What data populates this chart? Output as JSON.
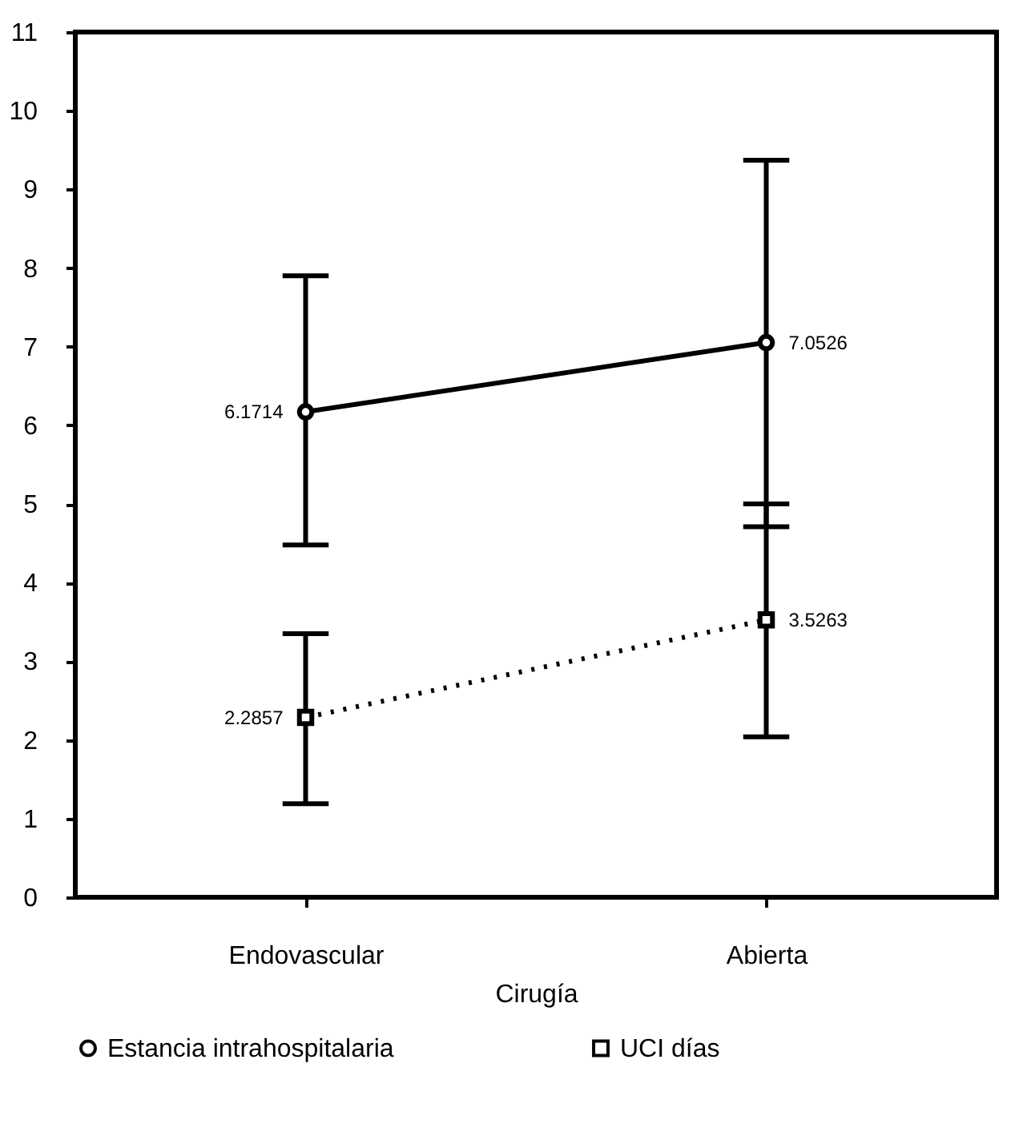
{
  "chart_data": {
    "type": "line",
    "xlabel": "Cirugía",
    "categories": [
      "Endovascular",
      "Abierta"
    ],
    "series": [
      {
        "name": "Estancia intrahospitalaria",
        "color": "#000000",
        "values": [
          6.1714,
          7.0526
        ],
        "errors": [
          [
            4.48,
            7.9
          ],
          [
            4.71,
            9.37
          ]
        ],
        "marker": "circle",
        "line_style": "solid"
      },
      {
        "name": "UCI días",
        "color": "#000000",
        "values": [
          2.2857,
          3.5263
        ],
        "errors": [
          [
            1.19,
            3.35
          ],
          [
            2.04,
            5.0
          ]
        ],
        "marker": "square",
        "line_style": "dotted"
      }
    ],
    "ylim": [
      0,
      11
    ],
    "yticks": [
      0,
      1,
      2,
      3,
      4,
      5,
      6,
      7,
      8,
      9,
      10,
      11
    ],
    "data_labels": true,
    "legend": "bottom",
    "grid": false
  }
}
